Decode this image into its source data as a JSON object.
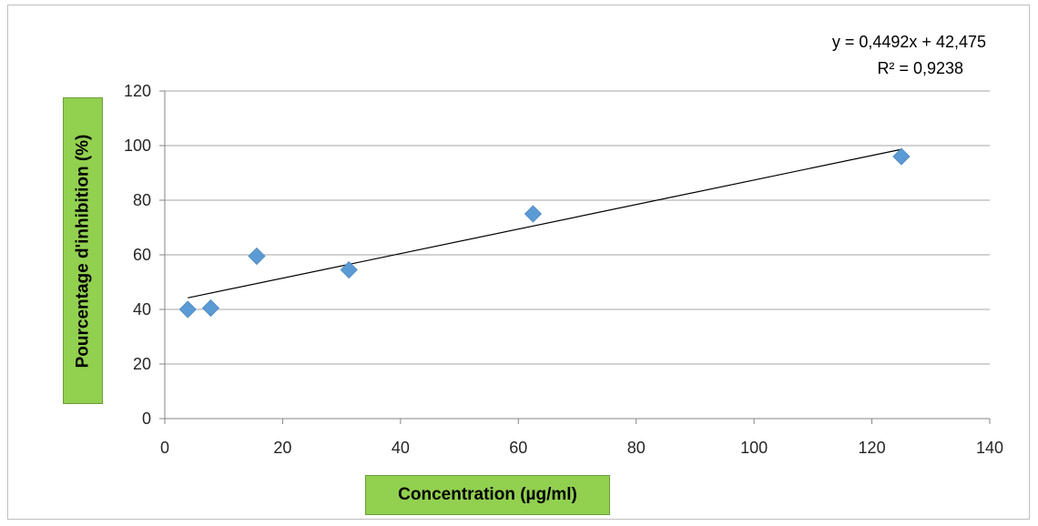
{
  "chart_data": {
    "type": "scatter",
    "title": "",
    "xlabel": "Concentration (µg/ml)",
    "ylabel": "Pourcentage d'inhibition (%)",
    "xlim": [
      0,
      140
    ],
    "ylim": [
      0,
      120
    ],
    "x_ticks": [
      "0",
      "20",
      "40",
      "60",
      "80",
      "100",
      "120",
      "140"
    ],
    "y_ticks": [
      "0",
      "20",
      "40",
      "60",
      "80",
      "100",
      "120"
    ],
    "grid": "horizontal",
    "series": [
      {
        "x": [
          3.9,
          7.8,
          15.6,
          31.25,
          62.5,
          125
        ],
        "y": [
          40,
          40.5,
          59.5,
          54.5,
          75,
          96
        ],
        "color": "#5b9bd5",
        "marker": "diamond"
      }
    ],
    "trendline": {
      "type": "linear",
      "slope": 0.4492,
      "intercept": 42.475,
      "x_range": [
        3.9,
        125
      ],
      "equation_label": "y = 0,4492x + 42,475",
      "r2_label": "R² = 0,9238",
      "color": "#000000"
    }
  }
}
